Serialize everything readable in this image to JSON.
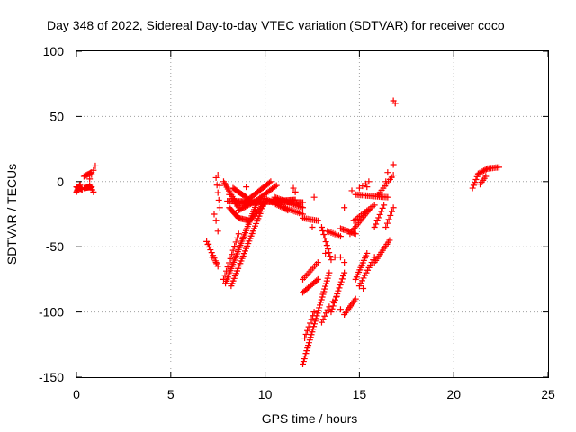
{
  "chart_data": {
    "type": "scatter",
    "title": "Day 348 of 2022, Sidereal Day-to-day VTEC variation (SDTVAR) for receiver coco",
    "xlabel": "GPS time / hours",
    "ylabel": "SDTVAR / TECUs",
    "xlim": [
      0,
      25
    ],
    "ylim": [
      -150,
      100
    ],
    "x_ticks": [
      0,
      5,
      10,
      15,
      20,
      25
    ],
    "y_ticks": [
      -150,
      -100,
      -50,
      0,
      50,
      100
    ],
    "x_tick_labels": [
      "0",
      "5",
      "10",
      "15",
      "20",
      "25"
    ],
    "y_tick_labels": [
      "-150",
      "-100",
      "-50",
      "0",
      "50",
      "100"
    ],
    "grid": true,
    "marker": "+",
    "marker_color": "#ff0000",
    "segments": [
      {
        "from": [
          0.0,
          -4
        ],
        "to": [
          0.3,
          -6
        ],
        "n": 12
      },
      {
        "from": [
          0.0,
          -8
        ],
        "to": [
          0.2,
          -2
        ],
        "n": 8
      },
      {
        "from": [
          0.4,
          -5
        ],
        "to": [
          0.8,
          -4
        ],
        "n": 10
      },
      {
        "from": [
          0.4,
          4
        ],
        "to": [
          0.8,
          7
        ],
        "n": 8
      },
      {
        "from": [
          0.7,
          2
        ],
        "to": [
          1.0,
          12
        ],
        "n": 4
      },
      {
        "from": [
          0.7,
          -3
        ],
        "to": [
          0.9,
          -8
        ],
        "n": 4
      },
      {
        "from": [
          6.9,
          -46
        ],
        "to": [
          7.5,
          -65
        ],
        "n": 10
      },
      {
        "from": [
          7.4,
          3
        ],
        "to": [
          7.6,
          -20
        ],
        "n": 5
      },
      {
        "from": [
          7.8,
          -75
        ],
        "to": [
          8.6,
          -40
        ],
        "n": 12
      },
      {
        "from": [
          7.9,
          -78
        ],
        "to": [
          9.6,
          -15
        ],
        "n": 40
      },
      {
        "from": [
          8.2,
          -80
        ],
        "to": [
          10.0,
          -15
        ],
        "n": 35
      },
      {
        "from": [
          7.8,
          0
        ],
        "to": [
          8.6,
          -20
        ],
        "n": 15
      },
      {
        "from": [
          8.1,
          -20
        ],
        "to": [
          8.6,
          -28
        ],
        "n": 10
      },
      {
        "from": [
          8.6,
          -28
        ],
        "to": [
          9.2,
          -30
        ],
        "n": 10
      },
      {
        "from": [
          9.2,
          -30
        ],
        "to": [
          10.0,
          -16
        ],
        "n": 14
      },
      {
        "from": [
          8.3,
          -5
        ],
        "to": [
          9.0,
          -12
        ],
        "n": 12
      },
      {
        "from": [
          8.0,
          -15
        ],
        "to": [
          12.0,
          -16
        ],
        "n": 60
      },
      {
        "from": [
          8.4,
          -17
        ],
        "to": [
          11.6,
          -14
        ],
        "n": 50
      },
      {
        "from": [
          8.6,
          -22
        ],
        "to": [
          9.5,
          -15
        ],
        "n": 14
      },
      {
        "from": [
          9.0,
          -15
        ],
        "to": [
          10.3,
          0
        ],
        "n": 20
      },
      {
        "from": [
          9.5,
          -15
        ],
        "to": [
          10.6,
          -3
        ],
        "n": 16
      },
      {
        "from": [
          10.0,
          -13
        ],
        "to": [
          11.2,
          -22
        ],
        "n": 16
      },
      {
        "from": [
          10.5,
          -12
        ],
        "to": [
          12.0,
          -20
        ],
        "n": 20
      },
      {
        "from": [
          11.0,
          -20
        ],
        "to": [
          12.0,
          -25
        ],
        "n": 12
      },
      {
        "from": [
          12.0,
          -28
        ],
        "to": [
          12.8,
          -30
        ],
        "n": 10
      },
      {
        "from": [
          12.0,
          -140
        ],
        "to": [
          13.4,
          -70
        ],
        "n": 35
      },
      {
        "from": [
          12.1,
          -120
        ],
        "to": [
          12.6,
          -100
        ],
        "n": 8
      },
      {
        "from": [
          12.0,
          -85
        ],
        "to": [
          12.8,
          -75
        ],
        "n": 12
      },
      {
        "from": [
          12.0,
          -75
        ],
        "to": [
          12.8,
          -62
        ],
        "n": 10
      },
      {
        "from": [
          13.0,
          -35
        ],
        "to": [
          13.5,
          -60
        ],
        "n": 10
      },
      {
        "from": [
          13.3,
          -38
        ],
        "to": [
          14.0,
          -42
        ],
        "n": 8
      },
      {
        "from": [
          13.5,
          -100
        ],
        "to": [
          14.2,
          -70
        ],
        "n": 14
      },
      {
        "from": [
          13.0,
          -108
        ],
        "to": [
          13.4,
          -96
        ],
        "n": 6
      },
      {
        "from": [
          14.2,
          -102
        ],
        "to": [
          14.8,
          -90
        ],
        "n": 10
      },
      {
        "from": [
          14.0,
          -36
        ],
        "to": [
          14.8,
          -40
        ],
        "n": 12
      },
      {
        "from": [
          14.8,
          -75
        ],
        "to": [
          15.4,
          -55
        ],
        "n": 12
      },
      {
        "from": [
          15.0,
          -80
        ],
        "to": [
          15.8,
          -58
        ],
        "n": 12
      },
      {
        "from": [
          14.5,
          -40
        ],
        "to": [
          15.5,
          -22
        ],
        "n": 14
      },
      {
        "from": [
          14.7,
          -30
        ],
        "to": [
          15.8,
          -18
        ],
        "n": 12
      },
      {
        "from": [
          14.8,
          -10
        ],
        "to": [
          16.5,
          -12
        ],
        "n": 20
      },
      {
        "from": [
          15.8,
          -62
        ],
        "to": [
          16.6,
          -45
        ],
        "n": 12
      },
      {
        "from": [
          15.8,
          -35
        ],
        "to": [
          16.3,
          -18
        ],
        "n": 8
      },
      {
        "from": [
          16.0,
          -10
        ],
        "to": [
          16.8,
          5
        ],
        "n": 10
      },
      {
        "from": [
          15.0,
          -5
        ],
        "to": [
          15.5,
          0
        ],
        "n": 4
      },
      {
        "from": [
          16.4,
          -35
        ],
        "to": [
          16.8,
          -20
        ],
        "n": 6
      },
      {
        "from": [
          21.0,
          -5
        ],
        "to": [
          21.3,
          6
        ],
        "n": 6
      },
      {
        "from": [
          21.3,
          6
        ],
        "to": [
          21.8,
          10
        ],
        "n": 8
      },
      {
        "from": [
          21.8,
          10
        ],
        "to": [
          22.4,
          11
        ],
        "n": 8
      },
      {
        "from": [
          21.4,
          -2
        ],
        "to": [
          21.7,
          4
        ],
        "n": 5
      }
    ],
    "points": [
      [
        16.8,
        62
      ],
      [
        16.9,
        60
      ],
      [
        16.8,
        13
      ],
      [
        16.5,
        7
      ],
      [
        16.4,
        0
      ],
      [
        7.5,
        5
      ],
      [
        7.6,
        -3
      ],
      [
        7.3,
        -25
      ],
      [
        7.4,
        -30
      ],
      [
        7.5,
        -38
      ],
      [
        7.0,
        -48
      ],
      [
        7.2,
        -58
      ],
      [
        7.4,
        -62
      ],
      [
        11.5,
        -5
      ],
      [
        11.6,
        -8
      ],
      [
        12.6,
        -12
      ],
      [
        13.2,
        -55
      ],
      [
        13.7,
        -58
      ],
      [
        14.2,
        -62
      ],
      [
        13.8,
        -88
      ],
      [
        14.0,
        -98
      ],
      [
        15.2,
        -82
      ],
      [
        14.2,
        -20
      ],
      [
        14.6,
        -7
      ],
      [
        15.4,
        -4
      ],
      [
        8.1,
        -10
      ],
      [
        9.0,
        -4
      ],
      [
        12.5,
        -35
      ],
      [
        13.6,
        -92
      ],
      [
        14.0,
        -58
      ]
    ]
  }
}
